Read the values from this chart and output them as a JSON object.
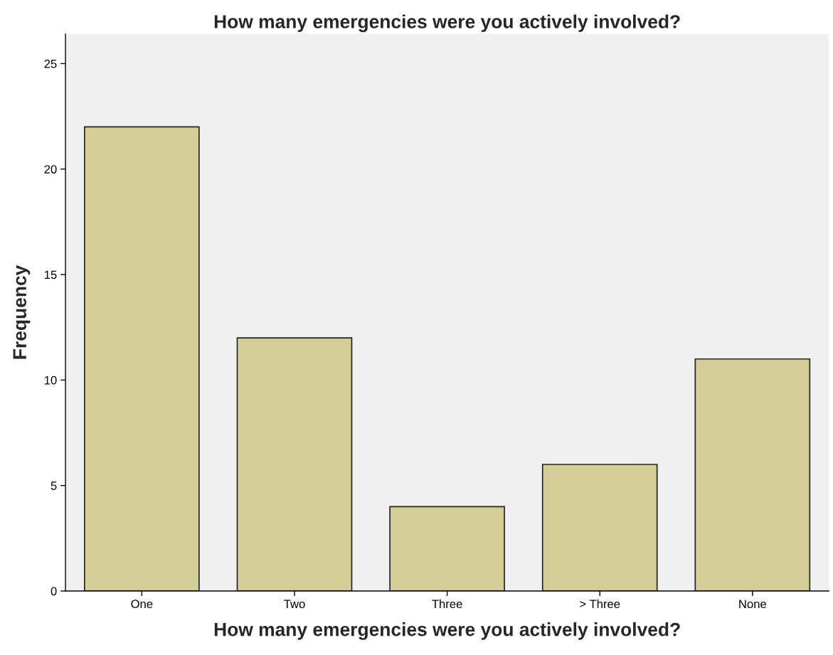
{
  "chart_data": {
    "type": "bar",
    "title": "How many emergencies were you actively involved?",
    "xlabel": "How many emergencies were you actively involved?",
    "ylabel": "Frequency",
    "categories": [
      "One",
      "Two",
      "Three",
      "> Three",
      "None"
    ],
    "values": [
      22,
      12,
      4,
      6,
      11
    ],
    "color": "#d3ce97",
    "ylim": [
      0,
      26.4
    ],
    "yticks": [
      0,
      5,
      10,
      15,
      20,
      25
    ],
    "grid": false
  }
}
